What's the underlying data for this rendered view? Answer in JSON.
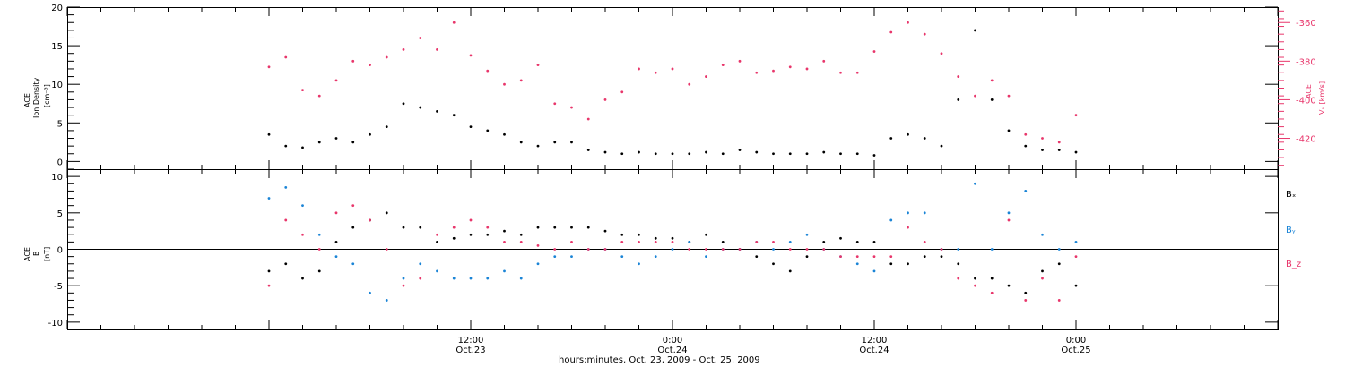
{
  "chart_data": [
    {
      "type": "scatter",
      "panel": "top",
      "ylabel_lines": [
        "ACE",
        "Ion Density",
        "[cm⁻³]"
      ],
      "ylim": [
        -1,
        20
      ],
      "yticks": [
        0,
        5,
        10,
        15,
        20
      ],
      "right_axis": {
        "label_lines": [
          "ACE",
          "Vₓ [km/s]"
        ],
        "ylim": [
          -436,
          -352
        ],
        "yticks": [
          -420,
          -400,
          -380,
          -360
        ],
        "color": "#e8366b"
      },
      "series": [
        {
          "name": "Ion Density",
          "color": "#000000",
          "axis": "left",
          "x": [
            0,
            1,
            2,
            3,
            4,
            5,
            6,
            7,
            8,
            9,
            10,
            11,
            12,
            13,
            14,
            15,
            16,
            17,
            18,
            19,
            20,
            21,
            22,
            23,
            24,
            25,
            26,
            27,
            28,
            29,
            30,
            31,
            32,
            33,
            34,
            35,
            36,
            37,
            38,
            39,
            40,
            41,
            42,
            43,
            44,
            45,
            46,
            47,
            48
          ],
          "values": [
            3.5,
            2.0,
            1.8,
            2.5,
            3.0,
            2.5,
            3.5,
            4.5,
            7.5,
            7.0,
            6.5,
            6.0,
            4.5,
            4.0,
            3.5,
            2.5,
            2.0,
            2.5,
            2.5,
            1.5,
            1.2,
            1.0,
            1.2,
            1.0,
            1.0,
            1.0,
            1.2,
            1.0,
            1.5,
            1.2,
            1.0,
            1.0,
            1.0,
            1.2,
            1.0,
            1.0,
            0.8,
            3.0,
            3.5,
            3.0,
            2.0,
            8.0,
            17.0,
            8.0,
            4.0,
            2.0,
            1.5,
            1.5,
            1.2
          ]
        },
        {
          "name": "Vx",
          "color": "#e8366b",
          "axis": "right",
          "x": [
            0,
            1,
            2,
            3,
            4,
            5,
            6,
            7,
            8,
            9,
            10,
            11,
            12,
            13,
            14,
            15,
            16,
            17,
            18,
            19,
            20,
            21,
            22,
            23,
            24,
            25,
            26,
            27,
            28,
            29,
            30,
            31,
            32,
            33,
            34,
            35,
            36,
            37,
            38,
            39,
            40,
            41,
            42,
            43,
            44,
            45,
            46,
            47,
            48
          ],
          "values": [
            -383,
            -378,
            -395,
            -398,
            -390,
            -380,
            -382,
            -378,
            -374,
            -368,
            -374,
            -360,
            -377,
            -385,
            -392,
            -390,
            -382,
            -402,
            -404,
            -410,
            -400,
            -396,
            -384,
            -386,
            -384,
            -392,
            -388,
            -382,
            -380,
            -386,
            -385,
            -383,
            -384,
            -380,
            -386,
            -386,
            -375,
            -365,
            -360,
            -366,
            -376,
            -388,
            -398,
            -390,
            -398,
            -418,
            -420,
            -422,
            -408
          ]
        }
      ]
    },
    {
      "type": "scatter",
      "panel": "bottom",
      "ylabel_lines": [
        "ACE",
        "B",
        "[nT]"
      ],
      "ylim": [
        -11,
        11
      ],
      "yticks": [
        -10,
        -5,
        0,
        5,
        10
      ],
      "xlabel": "hours:minutes, Oct. 23, 2009 - Oct. 25, 2009",
      "x_range_hours": [
        -12,
        60
      ],
      "x_ticks": [
        {
          "hours": 12,
          "line1": "12:00",
          "line2": "Oct.23"
        },
        {
          "hours": 24,
          "line1": "0:00",
          "line2": "Oct.24"
        },
        {
          "hours": 36,
          "line1": "12:00",
          "line2": "Oct.24"
        },
        {
          "hours": 48,
          "line1": "0:00",
          "line2": "Oct.25"
        }
      ],
      "legend_position": "right",
      "series": [
        {
          "name": "Bₓ",
          "color": "#000000",
          "x": [
            0,
            1,
            2,
            3,
            4,
            5,
            6,
            7,
            8,
            9,
            10,
            11,
            12,
            13,
            14,
            15,
            16,
            17,
            18,
            19,
            20,
            21,
            22,
            23,
            24,
            25,
            26,
            27,
            28,
            29,
            30,
            31,
            32,
            33,
            34,
            35,
            36,
            37,
            38,
            39,
            40,
            41,
            42,
            43,
            44,
            45,
            46,
            47,
            48
          ],
          "values": [
            -3.0,
            -2.0,
            -4.0,
            -3.0,
            1.0,
            3.0,
            4.0,
            5.0,
            3.0,
            3.0,
            1.0,
            1.5,
            2.0,
            2.0,
            2.5,
            2.0,
            3.0,
            3.0,
            3.0,
            3.0,
            2.5,
            2.0,
            2.0,
            1.5,
            1.5,
            1.0,
            2.0,
            1.0,
            0.0,
            -1.0,
            -2.0,
            -3.0,
            -1.0,
            1.0,
            1.5,
            1.0,
            1.0,
            -2.0,
            -2.0,
            -1.0,
            -1.0,
            -2.0,
            -4.0,
            -4.0,
            -5.0,
            -6.0,
            -3.0,
            -2.0,
            -5.0
          ]
        },
        {
          "name": "Bᵧ",
          "color": "#1a84d6",
          "x": [
            0,
            1,
            2,
            3,
            4,
            5,
            6,
            7,
            8,
            9,
            10,
            11,
            12,
            13,
            14,
            15,
            16,
            17,
            18,
            19,
            20,
            21,
            22,
            23,
            24,
            25,
            26,
            27,
            28,
            29,
            30,
            31,
            32,
            33,
            34,
            35,
            36,
            37,
            38,
            39,
            40,
            41,
            42,
            43,
            44,
            45,
            46,
            47,
            48
          ],
          "values": [
            7.0,
            8.5,
            6.0,
            2.0,
            -1.0,
            -2.0,
            -6.0,
            -7.0,
            -4.0,
            -2.0,
            -3.0,
            -4.0,
            -4.0,
            -4.0,
            -3.0,
            -4.0,
            -2.0,
            -1.0,
            -1.0,
            0.0,
            0.0,
            -1.0,
            -2.0,
            -1.0,
            0.0,
            1.0,
            -1.0,
            0.0,
            0.0,
            1.0,
            0.0,
            1.0,
            2.0,
            0.0,
            -1.0,
            -2.0,
            -3.0,
            4.0,
            5.0,
            5.0,
            0.0,
            0.0,
            9.0,
            0.0,
            5.0,
            8.0,
            2.0,
            0.0,
            1.0
          ]
        },
        {
          "name": "B_z",
          "color": "#e8366b",
          "x": [
            0,
            1,
            2,
            3,
            4,
            5,
            6,
            7,
            8,
            9,
            10,
            11,
            12,
            13,
            14,
            15,
            16,
            17,
            18,
            19,
            20,
            21,
            22,
            23,
            24,
            25,
            26,
            27,
            28,
            29,
            30,
            31,
            32,
            33,
            34,
            35,
            36,
            37,
            38,
            39,
            40,
            41,
            42,
            43,
            44,
            45,
            46,
            47,
            48
          ],
          "values": [
            -5.0,
            4.0,
            2.0,
            0.0,
            5.0,
            6.0,
            4.0,
            0.0,
            -5.0,
            -4.0,
            2.0,
            3.0,
            4.0,
            3.0,
            1.0,
            1.0,
            0.5,
            0.0,
            1.0,
            0.0,
            0.0,
            1.0,
            1.0,
            1.0,
            1.0,
            0.0,
            0.0,
            0.0,
            0.0,
            1.0,
            1.0,
            0.0,
            0.0,
            0.0,
            -1.0,
            -1.0,
            -1.0,
            -1.0,
            3.0,
            1.0,
            0.0,
            -4.0,
            -5.0,
            -6.0,
            4.0,
            -7.0,
            -4.0,
            -7.0,
            -1.0
          ]
        }
      ]
    }
  ]
}
